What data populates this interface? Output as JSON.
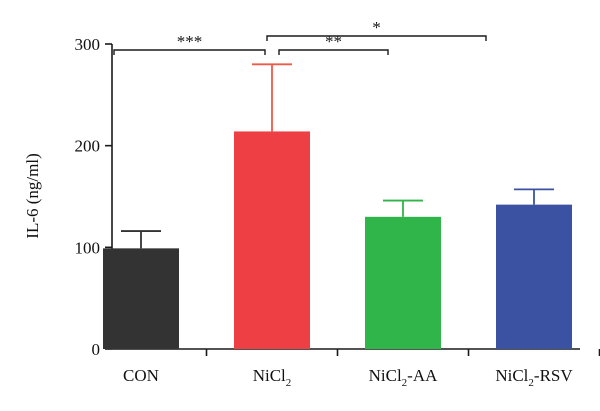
{
  "chart_data": {
    "type": "bar",
    "ylabel": "IL-6 (ng/ml)",
    "xlabel": "",
    "ylim": [
      0,
      300
    ],
    "yticks": [
      0,
      100,
      200,
      300
    ],
    "categories": [
      {
        "base": "CON",
        "sub": "",
        "suffix": ""
      },
      {
        "base": "NiCl",
        "sub": "2",
        "suffix": ""
      },
      {
        "base": "NiCl",
        "sub": "2",
        "suffix": "-AA"
      },
      {
        "base": "NiCl",
        "sub": "2",
        "suffix": "-RSV"
      }
    ],
    "values": [
      99,
      214,
      130,
      142
    ],
    "errors": [
      17,
      66,
      16,
      15
    ],
    "colors": [
      "#333333",
      "#ee4044",
      "#2fb54a",
      "#3b52a3"
    ],
    "error_colors": [
      "#333333",
      "#ee5a4a",
      "#2fb54a",
      "#3b52a3"
    ],
    "significance": [
      {
        "from": 0,
        "to": 1,
        "label": "***"
      },
      {
        "from": 1,
        "to": 2,
        "label": "**"
      },
      {
        "from": 1,
        "to": 3,
        "label": "*"
      }
    ],
    "grid": false
  }
}
